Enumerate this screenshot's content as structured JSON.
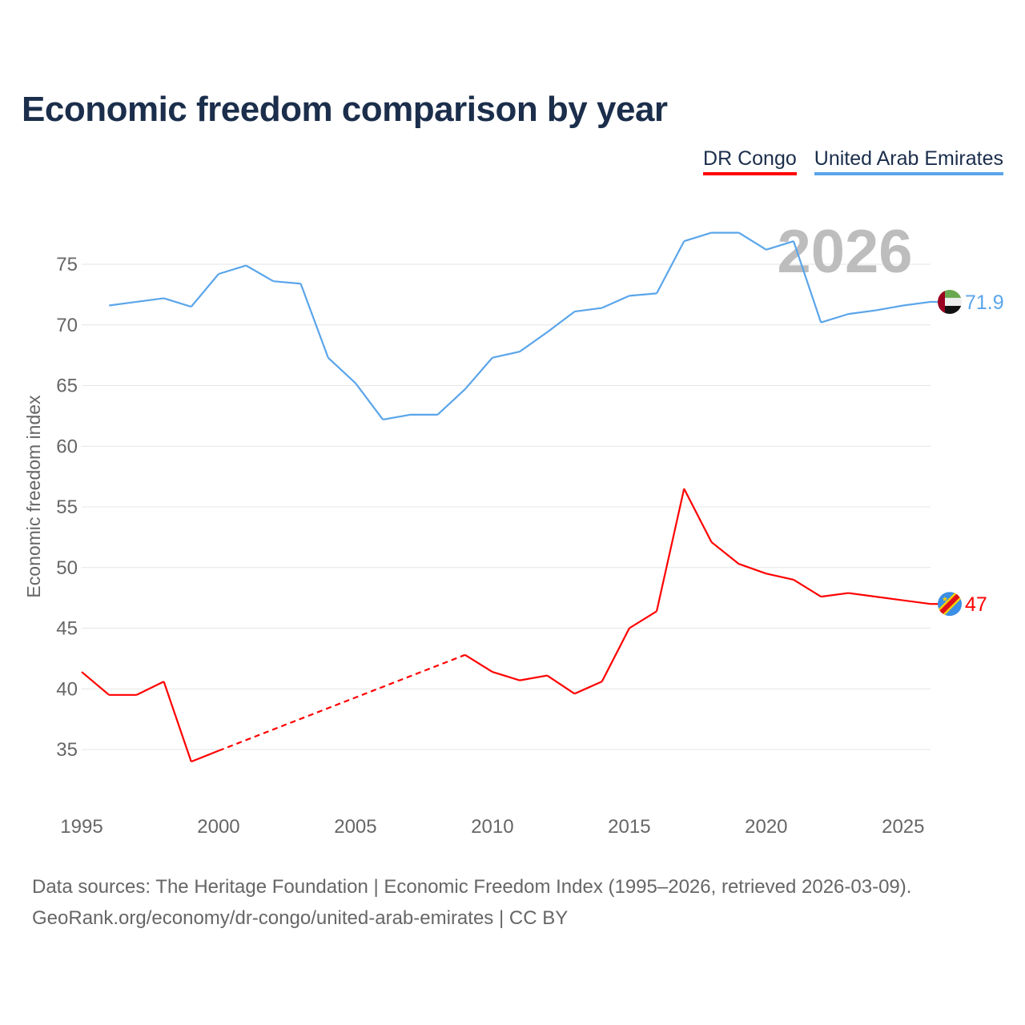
{
  "title": "Economic freedom comparison by year",
  "year_watermark": "2026",
  "footer": {
    "line1": "Data sources: The Heritage Foundation | Economic Freedom Index (1995–2026, retrieved 2026-03-09).",
    "line2": "GeoRank.org/economy/dr-congo/united-arab-emirates | CC BY"
  },
  "chart_data": {
    "type": "line",
    "title": "Economic freedom comparison by year",
    "xlabel": "",
    "ylabel": "Economic freedom index",
    "xlim": [
      1995,
      2026
    ],
    "ylim": [
      31,
      80
    ],
    "x_ticks": [
      "1995",
      "2000",
      "2005",
      "2010",
      "2015",
      "2020",
      "2025"
    ],
    "y_ticks": [
      "35",
      "40",
      "45",
      "50",
      "55",
      "60",
      "65",
      "70",
      "75"
    ],
    "grid": true,
    "legend_position": "top-right",
    "x": [
      1995,
      1996,
      1997,
      1998,
      1999,
      2000,
      2001,
      2002,
      2003,
      2004,
      2005,
      2006,
      2007,
      2008,
      2009,
      2010,
      2011,
      2012,
      2013,
      2014,
      2015,
      2016,
      2017,
      2018,
      2019,
      2020,
      2021,
      2022,
      2023,
      2024,
      2025,
      2026
    ],
    "series": [
      {
        "name": "DR Congo",
        "color": "#ff0000",
        "end_label": "47",
        "flag": "dr-congo-flag-icon",
        "values": [
          41.4,
          39.5,
          39.5,
          40.6,
          34.0,
          34.9,
          null,
          null,
          null,
          null,
          null,
          null,
          null,
          null,
          42.8,
          41.4,
          40.7,
          41.1,
          39.6,
          40.6,
          45.0,
          46.4,
          56.5,
          52.1,
          50.3,
          49.5,
          49.0,
          47.6,
          47.9,
          47.6,
          47.3,
          47.0
        ]
      },
      {
        "name": "United Arab Emirates",
        "color": "#5aa5ea",
        "end_label": "71.9",
        "flag": "uae-flag-icon",
        "values": [
          null,
          71.6,
          71.9,
          72.2,
          71.5,
          74.2,
          74.9,
          73.6,
          73.4,
          67.3,
          65.2,
          62.2,
          62.6,
          62.6,
          64.7,
          67.3,
          67.8,
          69.4,
          71.1,
          71.4,
          72.4,
          72.6,
          76.9,
          77.6,
          77.6,
          76.2,
          76.9,
          70.2,
          70.9,
          71.2,
          71.6,
          71.9
        ]
      }
    ]
  }
}
